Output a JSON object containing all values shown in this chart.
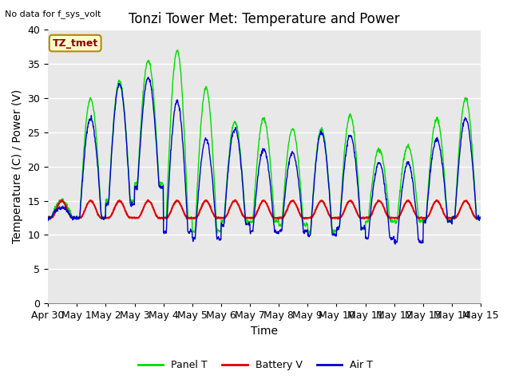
{
  "title": "Tonzi Tower Met: Temperature and Power",
  "xlabel": "Time",
  "ylabel": "Temperature (C) / Power (V)",
  "no_data_text": "No data for f_sys_volt",
  "annotation_text": "TZ_tmet",
  "ylim": [
    0,
    40
  ],
  "yticks": [
    0,
    5,
    10,
    15,
    20,
    25,
    30,
    35,
    40
  ],
  "xlim": [
    0,
    15
  ],
  "xtick_labels": [
    "Apr 30",
    "May 1",
    "May 2",
    "May 3",
    "May 4",
    "May 5",
    "May 6",
    "May 7",
    "May 8",
    "May 9",
    "May 10",
    "May 11",
    "May 12",
    "May 13",
    "May 14",
    "May 15"
  ],
  "panel_color": "#00dd00",
  "battery_color": "#dd0000",
  "air_color": "#0000cc",
  "bg_color": "#e8e8e8",
  "legend_labels": [
    "Panel T",
    "Battery V",
    "Air T"
  ],
  "title_fontsize": 12,
  "label_fontsize": 10,
  "tick_fontsize": 9,
  "panel_peaks": [
    15.0,
    30.0,
    32.5,
    35.5,
    37.0,
    31.5,
    26.5,
    27.0,
    25.5,
    25.5,
    27.5,
    22.5,
    23.0,
    27.0,
    30.0
  ],
  "panel_troughs": [
    12.5,
    12.5,
    15.0,
    17.5,
    12.5,
    10.5,
    12.0,
    12.0,
    11.5,
    10.5,
    11.0,
    12.0,
    12.0,
    12.0,
    12.5
  ],
  "air_peaks": [
    14.0,
    27.0,
    32.0,
    33.0,
    29.5,
    24.0,
    25.5,
    22.5,
    22.0,
    25.0,
    24.5,
    20.5,
    20.5,
    24.0,
    27.0
  ],
  "air_troughs": [
    12.5,
    12.5,
    14.5,
    17.0,
    10.5,
    9.5,
    11.5,
    10.5,
    10.5,
    10.0,
    11.0,
    9.5,
    9.0,
    12.0,
    12.5
  ],
  "battery_peaks": [
    15.0,
    15.0,
    15.0,
    15.0,
    15.0,
    15.0,
    15.0,
    15.0,
    15.0,
    15.0,
    15.0,
    15.0,
    15.0,
    15.0,
    15.0
  ],
  "battery_base": 12.5
}
